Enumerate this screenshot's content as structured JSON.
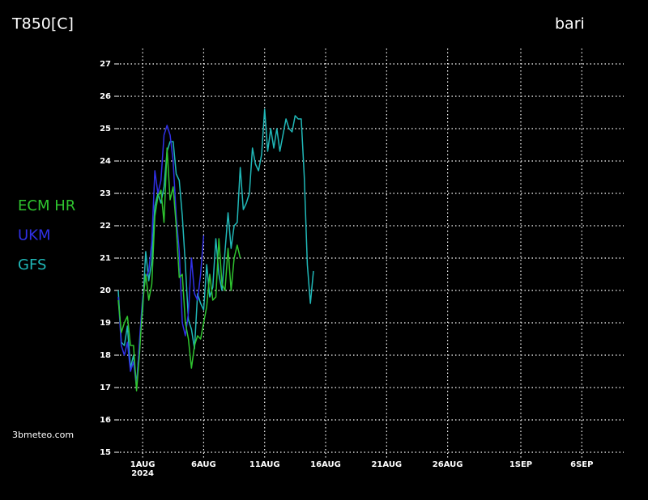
{
  "chart_data": {
    "type": "line",
    "title": "T850[C]",
    "subtitle": "bari",
    "source": "3bmeteo.com",
    "x_year_label": "2024",
    "x": [
      "2024-07-30T00:00",
      "2024-07-30T06:00",
      "2024-07-30T12:00",
      "2024-07-30T18:00",
      "2024-07-31T00:00",
      "2024-07-31T06:00",
      "2024-07-31T12:00",
      "2024-07-31T18:00",
      "2024-08-01T00:00",
      "2024-08-01T06:00",
      "2024-08-01T12:00",
      "2024-08-01T18:00",
      "2024-08-02T00:00",
      "2024-08-02T06:00",
      "2024-08-02T12:00",
      "2024-08-02T18:00",
      "2024-08-03T00:00",
      "2024-08-03T06:00",
      "2024-08-03T12:00",
      "2024-08-03T18:00",
      "2024-08-04T00:00",
      "2024-08-04T06:00",
      "2024-08-04T12:00",
      "2024-08-04T18:00",
      "2024-08-05T00:00",
      "2024-08-05T06:00",
      "2024-08-05T12:00",
      "2024-08-05T18:00",
      "2024-08-06T00:00",
      "2024-08-06T06:00",
      "2024-08-06T12:00",
      "2024-08-06T18:00",
      "2024-08-07T00:00",
      "2024-08-07T06:00",
      "2024-08-07T12:00",
      "2024-08-07T18:00",
      "2024-08-08T00:00",
      "2024-08-08T06:00",
      "2024-08-08T12:00",
      "2024-08-08T18:00",
      "2024-08-09T00:00",
      "2024-08-09T06:00",
      "2024-08-09T12:00",
      "2024-08-09T18:00",
      "2024-08-10T00:00",
      "2024-08-10T06:00",
      "2024-08-10T12:00",
      "2024-08-10T18:00",
      "2024-08-11T00:00",
      "2024-08-11T06:00",
      "2024-08-11T12:00",
      "2024-08-11T18:00",
      "2024-08-12T00:00",
      "2024-08-12T06:00",
      "2024-08-12T12:00",
      "2024-08-12T18:00",
      "2024-08-13T00:00",
      "2024-08-13T06:00",
      "2024-08-13T12:00",
      "2024-08-13T18:00",
      "2024-08-14T00:00",
      "2024-08-14T06:00",
      "2024-08-14T12:00",
      "2024-08-14T18:00",
      "2024-08-15T00:00"
    ],
    "series": [
      {
        "name": "ECM HR",
        "color": "#2fc42f",
        "values": [
          19.7,
          18.7,
          19.0,
          19.2,
          18.3,
          18.3,
          16.9,
          18.1,
          19.6,
          20.5,
          19.7,
          20.2,
          22.3,
          22.9,
          23.1,
          22.1,
          24.4,
          22.8,
          23.2,
          22.0,
          20.4,
          20.5,
          19.0,
          18.5,
          17.6,
          18.3,
          18.6,
          18.5,
          19.0,
          19.5,
          20.5,
          19.7,
          19.8,
          21.6,
          20.2,
          20.0,
          21.3,
          20.0,
          21.0,
          21.4,
          21.0,
          null,
          null,
          null,
          null,
          null,
          null,
          null,
          null,
          null,
          null,
          null,
          null,
          null,
          null,
          null,
          null,
          null,
          null,
          null,
          null,
          null,
          null,
          null,
          null
        ]
      },
      {
        "name": "UKM",
        "color": "#3030e6",
        "values": [
          19.8,
          18.3,
          18.0,
          18.4,
          17.5,
          17.8,
          17.0,
          18.5,
          19.8,
          20.4,
          20.6,
          21.5,
          23.7,
          23.0,
          23.4,
          24.8,
          25.1,
          24.8,
          24.0,
          22.3,
          21.2,
          19.0,
          18.6,
          19.3,
          21.0,
          19.9,
          19.7,
          20.5,
          21.7,
          null,
          null,
          null,
          null,
          null,
          null,
          null,
          null,
          null,
          null,
          null,
          null,
          null,
          null,
          null,
          null,
          null,
          null,
          null,
          null,
          null,
          null,
          null,
          null,
          null,
          null,
          null,
          null,
          null,
          null,
          null,
          null,
          null,
          null,
          null,
          null
        ]
      },
      {
        "name": "GFS",
        "color": "#20b8b8",
        "values": [
          20.0,
          18.4,
          18.3,
          18.9,
          17.6,
          18.0,
          17.1,
          18.4,
          19.4,
          21.2,
          20.3,
          20.9,
          22.6,
          23.0,
          22.7,
          23.2,
          24.3,
          24.6,
          24.6,
          23.6,
          23.4,
          22.3,
          20.8,
          19.1,
          18.8,
          18.2,
          19.9,
          19.6,
          19.4,
          20.8,
          19.8,
          20.1,
          21.6,
          20.5,
          20.0,
          21.2,
          22.4,
          21.3,
          22.0,
          22.1,
          23.8,
          22.5,
          22.7,
          23.0,
          24.4,
          23.9,
          23.7,
          24.2,
          25.6,
          24.3,
          25.0,
          24.4,
          25.0,
          24.3,
          24.8,
          25.3,
          25.0,
          24.9,
          25.4,
          25.3,
          25.3,
          23.5,
          20.8,
          19.6,
          20.6
        ]
      }
    ],
    "xlim": [
      "2024-07-30T00:00",
      "2024-09-09T12:00"
    ],
    "xticks": [
      {
        "value": "2024-08-01T00:00",
        "label": "1AUG"
      },
      {
        "value": "2024-08-06T00:00",
        "label": "6AUG"
      },
      {
        "value": "2024-08-11T00:00",
        "label": "11AUG"
      },
      {
        "value": "2024-08-16T00:00",
        "label": "16AUG"
      },
      {
        "value": "2024-08-21T00:00",
        "label": "21AUG"
      },
      {
        "value": "2024-08-26T00:00",
        "label": "26AUG"
      },
      {
        "value": "2024-09-01T00:00",
        "label": "1SEP"
      },
      {
        "value": "2024-09-06T00:00",
        "label": "6SEP"
      }
    ],
    "ylim": [
      15,
      27
    ],
    "yticks": [
      15,
      16,
      17,
      18,
      19,
      20,
      21,
      22,
      23,
      24,
      25,
      26,
      27
    ],
    "grid": true,
    "legend": "left"
  }
}
